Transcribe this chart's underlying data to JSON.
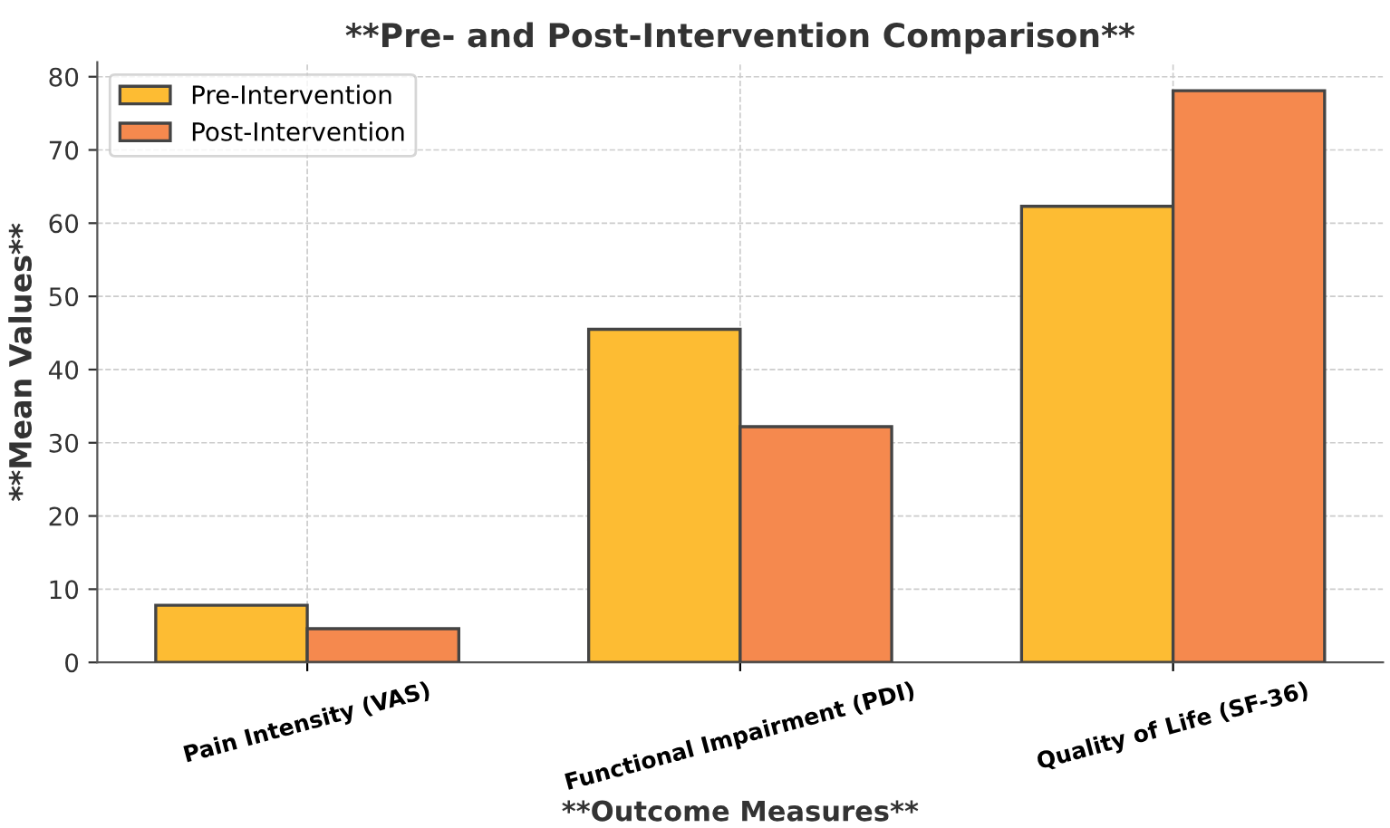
{
  "chart_data": {
    "type": "bar",
    "title": "**Pre- and Post-Intervention Comparison**",
    "xlabel": "**Outcome Measures**",
    "ylabel": "**Mean Values**",
    "categories": [
      "Pain Intensity (VAS)",
      "Functional Impairment (PDI)",
      "Quality of Life (SF-36)"
    ],
    "series": [
      {
        "name": "Pre-Intervention",
        "color": "#fdbc33",
        "values": [
          7.8,
          45.5,
          62.3
        ]
      },
      {
        "name": "Post-Intervention",
        "color": "#f5894e",
        "values": [
          4.6,
          32.2,
          78.1
        ]
      }
    ],
    "ylim": [
      0,
      82
    ],
    "yticks": [
      0,
      10,
      20,
      30,
      40,
      50,
      60,
      70,
      80
    ],
    "grid": true,
    "legend": "top left"
  }
}
